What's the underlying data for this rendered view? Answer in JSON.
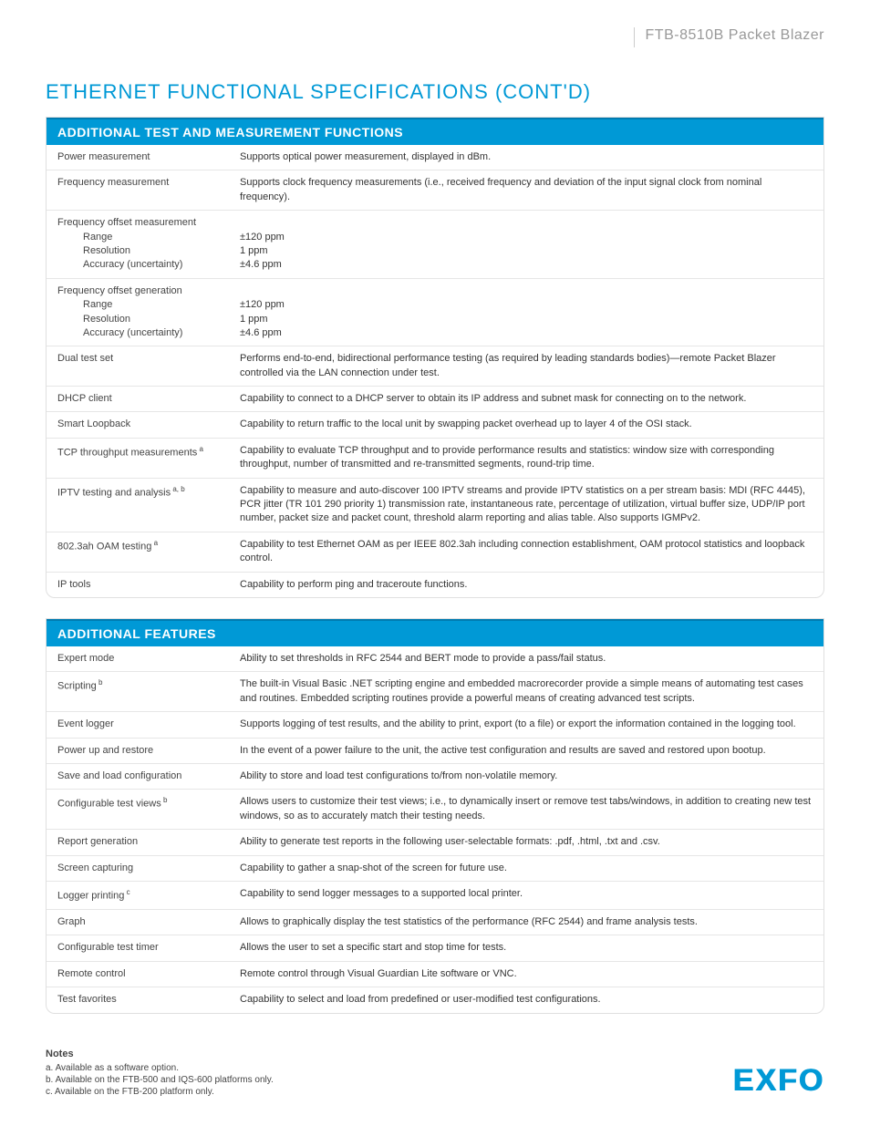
{
  "header": {
    "product": "FTB-8510B Packet Blazer"
  },
  "page_title": "ETHERNET FUNCTIONAL SPECIFICATIONS (CONT'D)",
  "section1": {
    "title": "ADDITIONAL TEST AND MEASUREMENT FUNCTIONS",
    "rows": [
      {
        "label": "Power measurement",
        "desc": "Supports optical power measurement, displayed in dBm."
      },
      {
        "label": "Frequency measurement",
        "desc": "Supports clock frequency measurements (i.e., received frequency and deviation of the input signal clock from nominal frequency)."
      },
      {
        "label": "Frequency offset measurement",
        "sublabels": [
          "Range",
          "Resolution",
          "Accuracy (uncertainty)"
        ],
        "subvalues": [
          "±120 ppm",
          "1 ppm",
          "±4.6 ppm"
        ]
      },
      {
        "label": "Frequency offset generation",
        "sublabels": [
          "Range",
          "Resolution",
          "Accuracy (uncertainty)"
        ],
        "subvalues": [
          "±120 ppm",
          "1 ppm",
          "±4.6 ppm"
        ]
      },
      {
        "label": "Dual test set",
        "desc": "Performs end-to-end, bidirectional performance testing (as required by leading standards bodies)—remote Packet Blazer controlled via the LAN connection under test."
      },
      {
        "label": "DHCP client",
        "desc": "Capability to connect to a DHCP server to obtain its IP address and subnet mask for connecting on to the network."
      },
      {
        "label": "Smart Loopback",
        "desc": "Capability to return traffic to the local unit by swapping packet overhead up to layer 4 of the OSI stack."
      },
      {
        "label": "TCP throughput measurements",
        "sup": "a",
        "desc": "Capability to evaluate TCP throughput and to provide performance results and statistics: window size with corresponding throughput, number of transmitted and re-transmitted segments, round-trip time."
      },
      {
        "label": "IPTV testing and analysis",
        "sup": "a, b",
        "desc": "Capability to measure and auto-discover 100 IPTV streams and provide IPTV statistics on a per stream basis: MDI (RFC 4445), PCR jitter (TR 101 290 priority 1) transmission rate, instantaneous rate, percentage of utilization, virtual buffer size, UDP/IP port number, packet size and packet count, threshold alarm reporting and alias table. Also supports IGMPv2."
      },
      {
        "label": "802.3ah OAM testing",
        "sup": "a",
        "desc": "Capability to test Ethernet OAM as per IEEE 802.3ah including connection establishment, OAM protocol statistics and loopback control."
      },
      {
        "label": "IP tools",
        "desc": "Capability to perform ping and traceroute functions."
      }
    ]
  },
  "section2": {
    "title": "ADDITIONAL FEATURES",
    "rows": [
      {
        "label": "Expert mode",
        "desc": "Ability to set thresholds in RFC 2544 and BERT mode to provide a pass/fail status."
      },
      {
        "label": "Scripting",
        "sup": "b",
        "desc": "The built-in Visual Basic .NET scripting engine and embedded macrorecorder provide a simple means of automating test cases and routines. Embedded scripting routines provide a powerful means of creating advanced test scripts."
      },
      {
        "label": "Event logger",
        "desc": "Supports logging of test results, and the ability to print, export (to a file) or export the information contained in the logging tool."
      },
      {
        "label": "Power up and restore",
        "desc": "In the event of a power failure to the unit, the active test configuration and results are saved and restored upon bootup."
      },
      {
        "label": "Save and load configuration",
        "desc": "Ability to store and load test configurations to/from non-volatile memory."
      },
      {
        "label": "Configurable test views",
        "sup": "b",
        "desc": "Allows users to customize their test views; i.e., to dynamically insert or remove test tabs/windows, in addition to creating new test windows, so as to accurately match their testing needs."
      },
      {
        "label": "Report generation",
        "desc": "Ability to generate test reports in the following user-selectable formats: .pdf, .html, .txt and .csv."
      },
      {
        "label": "Screen capturing",
        "desc": "Capability to gather a snap-shot of the screen for future use."
      },
      {
        "label": "Logger printing",
        "sup": "c",
        "desc": "Capability to send logger messages to a supported local printer."
      },
      {
        "label": "Graph",
        "desc": "Allows to graphically display the test statistics of the performance (RFC 2544) and frame analysis tests."
      },
      {
        "label": "Configurable test timer",
        "desc": "Allows the user to set a specific start and stop time for tests."
      },
      {
        "label": "Remote control",
        "desc": "Remote control through Visual Guardian Lite software or VNC."
      },
      {
        "label": "Test favorites",
        "desc": "Capability to select and load from predefined or user-modified test configurations."
      }
    ]
  },
  "notes": {
    "title": "Notes",
    "items": [
      "a.  Available as a software option.",
      "b.  Available on the FTB-500 and IQS-600 platforms only.",
      "c.  Available on the FTB-200 platform only."
    ]
  },
  "logo_text": "EXFO",
  "colors": {
    "brand_blue": "#0099d6",
    "header_border": "#007bb0",
    "text": "#333333",
    "muted": "#999999",
    "row_border": "#e6e6e6"
  }
}
